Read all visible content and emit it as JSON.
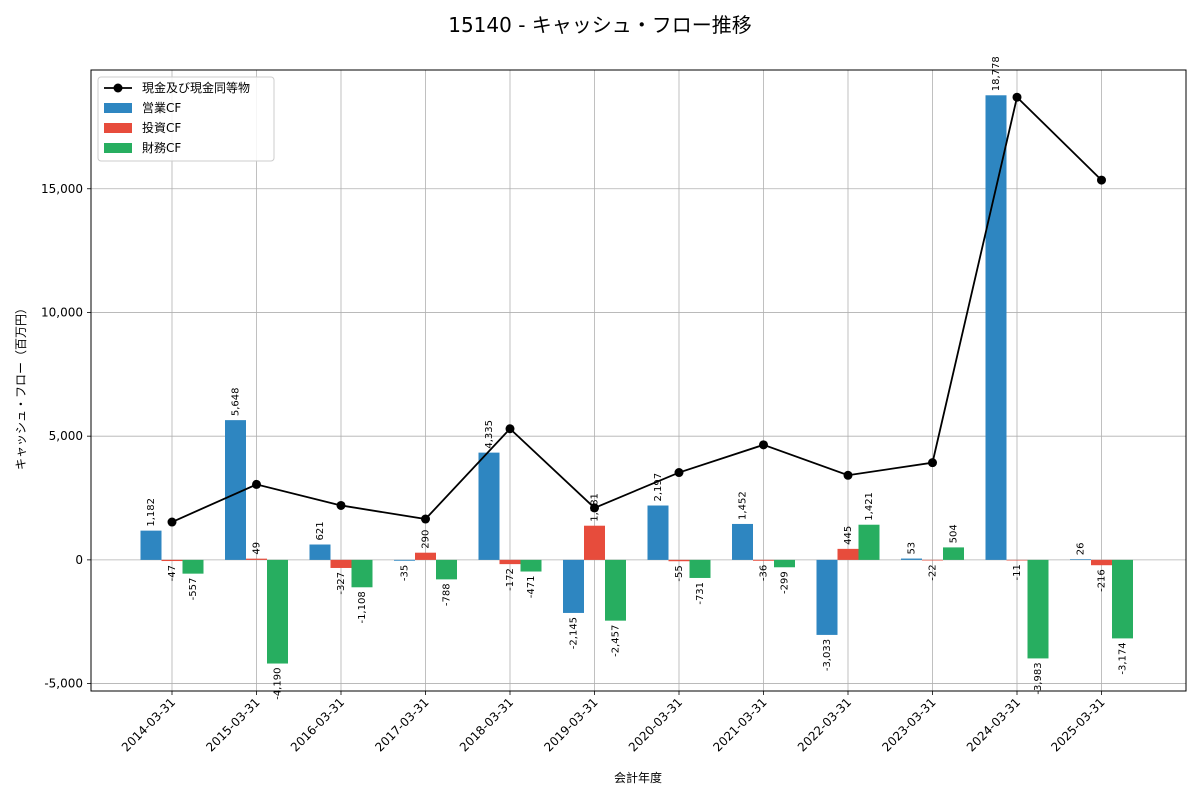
{
  "chart_data": {
    "type": "bar",
    "title": "15140 - キャッシュ・フロー推移",
    "xlabel": "会計年度",
    "ylabel": "キャッシュ・フロー（百万円）",
    "ylim": [
      -5300,
      19800
    ],
    "yticks": [
      -5000,
      0,
      5000,
      10000,
      15000
    ],
    "ytick_labels": [
      "-5,000",
      "0",
      "5,000",
      "10,000",
      "15,000"
    ],
    "grid": true,
    "legend_position": "top-left",
    "categories": [
      "2014-03-31",
      "2015-03-31",
      "2016-03-31",
      "2017-03-31",
      "2018-03-31",
      "2019-03-31",
      "2020-03-31",
      "2021-03-31",
      "2022-03-31",
      "2023-03-31",
      "2024-03-31",
      "2025-03-31"
    ],
    "series": [
      {
        "name": "営業CF",
        "kind": "bar",
        "color": "#2e86c1",
        "values": [
          1182,
          5648,
          621,
          -35,
          4335,
          -2145,
          2197,
          1452,
          -3033,
          53,
          18778,
          26
        ],
        "labels": [
          "1,182",
          "5,648",
          "621",
          "-35",
          "4,335",
          "-2,145",
          "2,197",
          "1,452",
          "-3,033",
          "53",
          "18,778",
          "26"
        ]
      },
      {
        "name": "投資CF",
        "kind": "bar",
        "color": "#e74c3c",
        "values": [
          -47,
          49,
          -327,
          290,
          -172,
          1381,
          -55,
          -36,
          445,
          -22,
          -11,
          -216
        ],
        "labels": [
          "-47",
          "49",
          "-327",
          "290",
          "-172",
          "1,381",
          "-55",
          "-36",
          "445",
          "-22",
          "-11",
          "-216"
        ]
      },
      {
        "name": "財務CF",
        "kind": "bar",
        "color": "#27ae60",
        "values": [
          -557,
          -4190,
          -1108,
          -788,
          -471,
          -2457,
          -731,
          -299,
          1421,
          504,
          -3983,
          -3174
        ],
        "labels": [
          "-557",
          "-4,190",
          "-1,108",
          "-788",
          "-471",
          "-2,457",
          "-731",
          "-299",
          "1,421",
          "504",
          "-3,983",
          "-3,174"
        ]
      },
      {
        "name": "現金及び現金同等物",
        "kind": "line",
        "color": "#000000",
        "values": [
          1530,
          3050,
          2200,
          1650,
          5300,
          2100,
          3530,
          4650,
          3420,
          3930,
          18700,
          15350
        ]
      }
    ]
  }
}
